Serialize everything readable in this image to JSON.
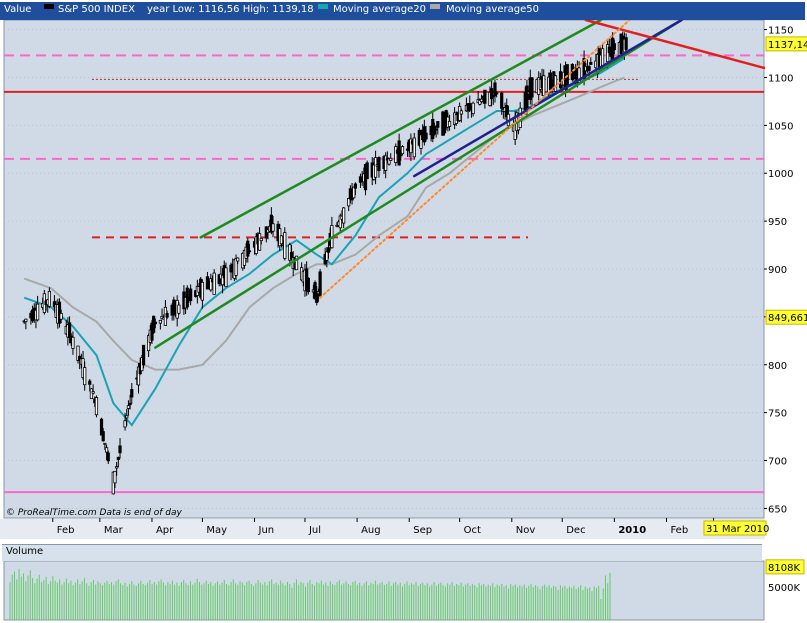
{
  "header": {
    "value_label": "Value",
    "series_label": "S&P 500 INDEX",
    "range_label": "year Low: 1116,56 High: 1139,18",
    "ma20_label": "Moving average20",
    "ma50_label": "Moving average50"
  },
  "footer": {
    "credit": "© ProRealTime.com",
    "note": "Data is end of day",
    "date_badge": "31 Mar 2010"
  },
  "volume_panel": {
    "label": "Volume",
    "ticks": [
      "5000K"
    ],
    "badge": "8108K"
  },
  "colors": {
    "background": "#cfdae6",
    "candle": "#000000",
    "ma20": "#1aa3b5",
    "ma50": "#a8a8a8",
    "channel": "#1f8a1f",
    "resistance": "#e02020",
    "trend_blue": "#202090",
    "guide_orange": "#ff8a30",
    "dashed_pink": "#ff66cc",
    "volume_bar": "#66cc66"
  },
  "chart_data": {
    "type": "line",
    "title": "S&P 500 INDEX",
    "xlabel": "",
    "ylabel": "",
    "x_ticks": [
      "Feb",
      "Mar",
      "Apr",
      "May",
      "Jun",
      "Jul",
      "Aug",
      "Sep",
      "Oct",
      "Nov",
      "Dec",
      "2010",
      "Feb",
      "M"
    ],
    "y_ticks": [
      650,
      700,
      750,
      800,
      850,
      900,
      950,
      1000,
      1050,
      1100,
      1150
    ],
    "ylim": [
      640,
      1160
    ],
    "grid": true,
    "last_price_badge": "1137,14",
    "level_badge": "849,661",
    "x_dates": [
      "2009-01-15",
      "2009-01-31",
      "2009-02-13",
      "2009-02-27",
      "2009-03-09",
      "2009-03-20",
      "2009-04-03",
      "2009-04-17",
      "2009-05-01",
      "2009-05-15",
      "2009-05-29",
      "2009-06-12",
      "2009-06-26",
      "2009-07-08",
      "2009-07-17",
      "2009-07-31",
      "2009-08-14",
      "2009-08-31",
      "2009-09-11",
      "2009-09-25",
      "2009-10-09",
      "2009-10-23",
      "2009-11-02",
      "2009-11-13",
      "2009-11-27",
      "2009-12-11",
      "2009-12-24",
      "2010-01-07"
    ],
    "series": [
      {
        "name": "S&P 500 INDEX",
        "values": [
          845,
          870,
          825,
          760,
          677,
          770,
          845,
          860,
          880,
          895,
          920,
          945,
          905,
          870,
          935,
          985,
          1010,
          1025,
          1040,
          1055,
          1070,
          1085,
          1045,
          1090,
          1095,
          1105,
          1120,
          1137
        ]
      },
      {
        "name": "Moving average20",
        "values": [
          870,
          860,
          840,
          810,
          760,
          737,
          775,
          820,
          860,
          880,
          895,
          915,
          930,
          915,
          905,
          935,
          975,
          1000,
          1020,
          1035,
          1050,
          1065,
          1065,
          1070,
          1085,
          1095,
          1105,
          1120
        ]
      },
      {
        "name": "Moving average50",
        "values": [
          890,
          880,
          860,
          845,
          825,
          805,
          795,
          795,
          800,
          825,
          860,
          880,
          895,
          905,
          905,
          915,
          935,
          955,
          985,
          1000,
          1020,
          1040,
          1050,
          1060,
          1070,
          1080,
          1090,
          1100
        ]
      }
    ],
    "levels": [
      {
        "value": 1123,
        "style": "dashed",
        "color": "#ff66cc"
      },
      {
        "value": 1085,
        "style": "solid",
        "color": "#e02020"
      },
      {
        "value": 1015,
        "style": "dashed",
        "color": "#ff66cc"
      },
      {
        "value": 933,
        "style": "dashed",
        "color": "#e02020"
      },
      {
        "value": 667,
        "style": "solid",
        "color": "#ff66cc"
      }
    ],
    "trendlines": [
      {
        "from": [
          "2009-04-03",
          818
        ],
        "to": [
          "2010-02-10",
          1160
        ],
        "color": "#1f8a1f",
        "style": "solid"
      },
      {
        "from": [
          "2009-04-30",
          933
        ],
        "to": [
          "2009-12-24",
          1160
        ],
        "color": "#1f8a1f",
        "style": "solid"
      },
      {
        "from": [
          "2009-09-04",
          997
        ],
        "to": [
          "2010-02-10",
          1160
        ],
        "color": "#202090",
        "style": "solid"
      },
      {
        "from": [
          "2009-12-15",
          1160
        ],
        "to": [
          "2010-03-31",
          1110
        ],
        "color": "#e02020",
        "style": "solid"
      },
      {
        "from": [
          "2009-07-10",
          870
        ],
        "to": [
          "2010-01-10",
          1160
        ],
        "color": "#ff8a30",
        "style": "dotted"
      }
    ],
    "volume_ylim": [
      0,
      9000
    ],
    "volume_values": [
      5800,
      6900,
      7400,
      6200,
      7800,
      6600,
      7100,
      5900,
      6800,
      7600,
      6400,
      5600,
      6300,
      6900,
      5800,
      6100,
      6600,
      5500,
      5900,
      6700,
      6000,
      5700,
      6200,
      5400,
      5800,
      6300,
      5600,
      6000,
      5300,
      5700,
      6200,
      5500,
      5900,
      6400,
      5600,
      5200,
      5800,
      6100,
      5400,
      5900,
      5600,
      5300,
      5700,
      6000,
      5500,
      5800,
      5400,
      5900,
      6200,
      5600,
      5300,
      5700,
      5100,
      5500,
      5900,
      5400,
      5200,
      5600,
      6000,
      5500,
      5300,
      5700,
      6100,
      5500,
      5800,
      5400,
      5900,
      6200,
      5700,
      5300,
      5800,
      5500,
      6000,
      5400,
      5700,
      5200,
      5800,
      6100,
      5600,
      5300,
      5900,
      5400,
      5700,
      6300,
      5800,
      5400,
      5600,
      6000,
      5500,
      5800,
      5200,
      5600,
      5900,
      5400,
      5700,
      6100,
      5500,
      5300,
      5800,
      6200,
      5600,
      5400,
      5900,
      5700,
      5300,
      5800,
      6000,
      5500,
      5200,
      5600,
      6100,
      5700,
      5400,
      5800,
      5300,
      5900,
      6200,
      5500,
      5700,
      5400,
      6000,
      5600,
      5300,
      5800,
      5500,
      4900,
      5700,
      6200,
      5400,
      5800,
      5600,
      5100,
      5700,
      6100,
      5500,
      5300,
      5800,
      5600,
      6000,
      5400,
      5700,
      5200,
      5900,
      5500,
      5300,
      5800,
      6100,
      5400,
      5600,
      5900,
      5500,
      5300,
      5800,
      6000,
      5400,
      5700,
      5200,
      5600,
      5900,
      5300,
      5700,
      5500,
      6000,
      5400,
      5600,
      5800,
      5300,
      5500,
      5900,
      5200,
      5600,
      5800,
      5400,
      5700,
      5100,
      5500,
      5900,
      5300,
      5600,
      5400,
      5800,
      5200,
      5500,
      5700,
      5300,
      5600,
      5100,
      5400,
      5800,
      5200,
      5500,
      5700,
      5300,
      5100,
      5600,
      5400,
      5800,
      5200,
      5500,
      5300,
      5700,
      5100,
      5400,
      5600,
      5200,
      5500,
      5300,
      5000,
      5600,
      5300,
      5500,
      5100,
      5400,
      5200,
      5600,
      5000,
      5400,
      5200,
      5500,
      5100,
      5300,
      4800,
      5500,
      5200,
      5400,
      5000,
      5300,
      5100,
      5400,
      4900,
      5200,
      5500,
      5000,
      5300,
      5100,
      4700,
      5200,
      5400,
      5000,
      5300,
      4900,
      5200,
      5100,
      4600,
      5300,
      5000,
      5200,
      4800,
      5100,
      4900,
      5200,
      4700,
      5000,
      5300,
      4600,
      5100,
      4800,
      5000,
      4400,
      5100,
      4900,
      5200,
      3200,
      4800,
      6800,
      5600,
      7200
    ]
  }
}
